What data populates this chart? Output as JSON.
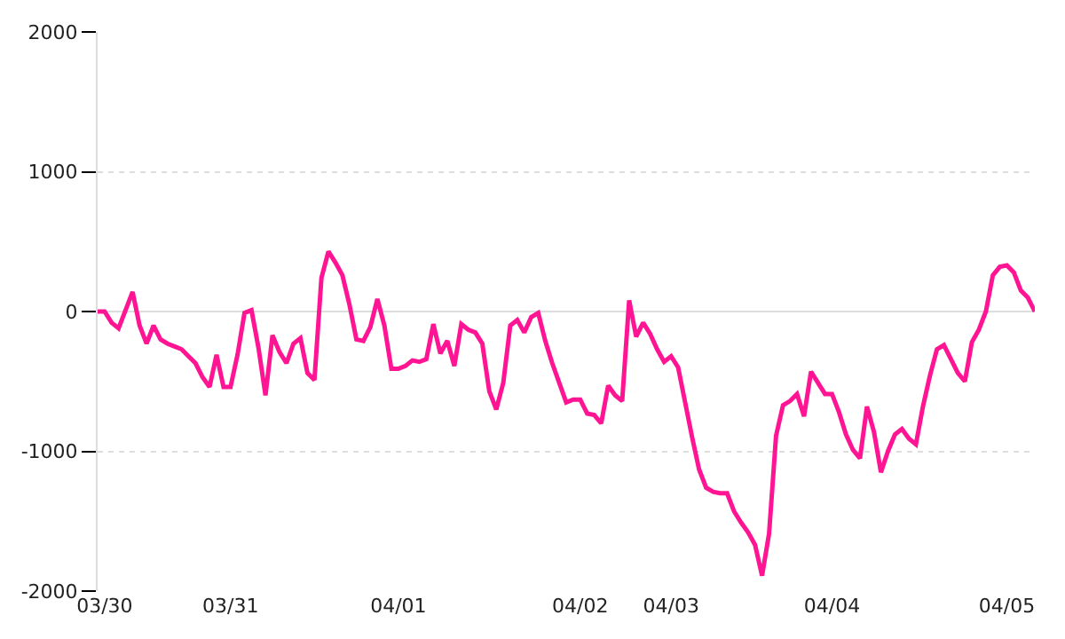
{
  "chart_data": {
    "type": "line",
    "categories": [
      null,
      "03/30",
      null,
      null,
      null,
      null,
      null,
      null,
      null,
      null,
      null,
      null,
      null,
      null,
      null,
      null,
      null,
      null,
      null,
      "03/31",
      null,
      null,
      null,
      null,
      null,
      null,
      null,
      null,
      null,
      null,
      null,
      null,
      null,
      null,
      null,
      null,
      null,
      null,
      null,
      null,
      null,
      null,
      null,
      "04/01",
      null,
      null,
      null,
      null,
      null,
      null,
      null,
      null,
      null,
      null,
      null,
      null,
      null,
      null,
      null,
      null,
      null,
      null,
      null,
      null,
      null,
      null,
      null,
      null,
      null,
      "04/02",
      null,
      null,
      null,
      null,
      null,
      null,
      null,
      null,
      null,
      null,
      null,
      null,
      "04/03",
      null,
      null,
      null,
      null,
      null,
      null,
      null,
      null,
      null,
      null,
      null,
      null,
      null,
      null,
      null,
      null,
      null,
      null,
      null,
      null,
      null,
      null,
      "04/04",
      null,
      null,
      null,
      null,
      null,
      null,
      null,
      null,
      null,
      null,
      null,
      null,
      null,
      null,
      null,
      null,
      null,
      null,
      null,
      null,
      null,
      null,
      null,
      null,
      "04/05",
      null,
      null,
      null,
      null
    ],
    "series": [
      {
        "color": "#ff1493",
        "values": [
          0,
          0,
          -80,
          -120,
          10,
          140,
          -100,
          -230,
          -100,
          -200,
          -230,
          -250,
          -270,
          -320,
          -370,
          -470,
          -540,
          -310,
          -540,
          -540,
          -310,
          -10,
          10,
          -260,
          -600,
          -170,
          -290,
          -370,
          -230,
          -190,
          -440,
          -490,
          240,
          430,
          350,
          260,
          50,
          -200,
          -210,
          -110,
          90,
          -100,
          -410,
          -410,
          -390,
          -350,
          -360,
          -340,
          -90,
          -300,
          -210,
          -390,
          -90,
          -130,
          -150,
          -230,
          -570,
          -700,
          -510,
          -100,
          -60,
          -150,
          -40,
          -10,
          -210,
          -370,
          -510,
          -650,
          -630,
          -630,
          -730,
          -740,
          -800,
          -530,
          -600,
          -640,
          80,
          -180,
          -80,
          -160,
          -270,
          -360,
          -320,
          -400,
          -650,
          -900,
          -1130,
          -1260,
          -1290,
          -1300,
          -1300,
          -1430,
          -1510,
          -1580,
          -1670,
          -1890,
          -1590,
          -890,
          -670,
          -640,
          -590,
          -750,
          -430,
          -510,
          -590,
          -590,
          -720,
          -880,
          -990,
          -1050,
          -680,
          -860,
          -1150,
          -1000,
          -880,
          -840,
          -910,
          -950,
          -680,
          -460,
          -270,
          -240,
          -340,
          -440,
          -500,
          -220,
          -130,
          0,
          260,
          320,
          330,
          280,
          150,
          100,
          0
        ]
      }
    ],
    "ylim": [
      -2000,
      2000
    ],
    "yticks": [
      -2000,
      -1000,
      0,
      1000,
      2000
    ],
    "grid": "y",
    "marker": "none",
    "line_style": "solid"
  }
}
